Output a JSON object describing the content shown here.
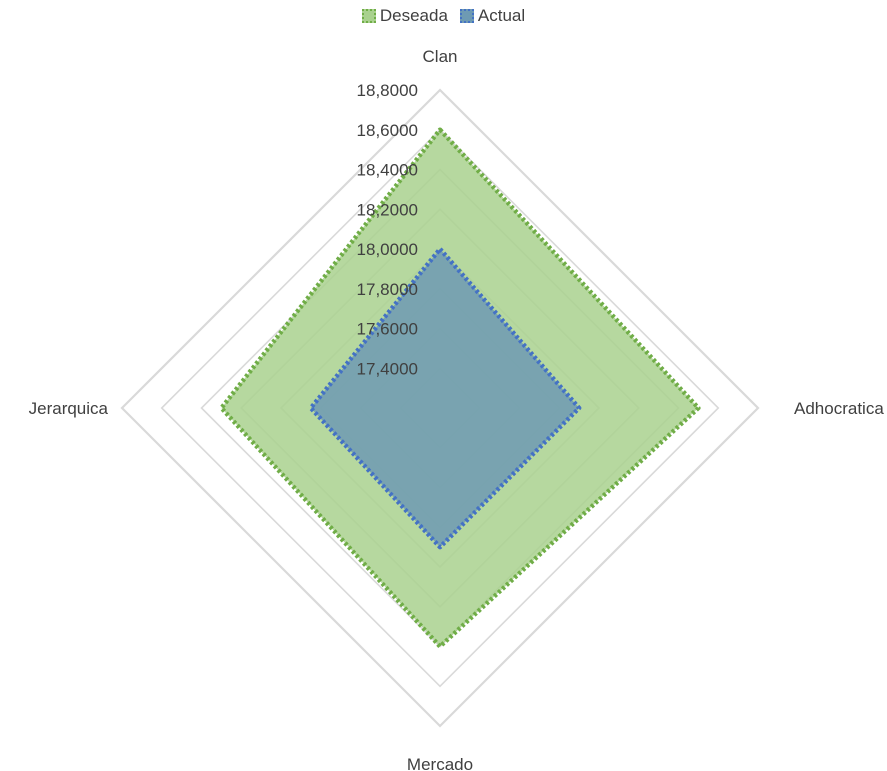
{
  "chart_data": {
    "type": "radar",
    "categories": [
      "Clan",
      "Adhocratica",
      "Mercado",
      "Jerarquica"
    ],
    "series": [
      {
        "name": "Deseada",
        "values": [
          18.6,
          18.5,
          18.4,
          18.3
        ],
        "color": "#70AD47",
        "fill": "#A9D18E"
      },
      {
        "name": "Actual",
        "values": [
          18.0,
          17.9,
          17.9,
          17.85
        ],
        "color": "#4472C4",
        "fill": "#6E9AB3"
      }
    ],
    "rlim": [
      17.2,
      18.8
    ],
    "ticks": [
      "17,4000",
      "17,6000",
      "17,8000",
      "18,0000",
      "18,2000",
      "18,4000",
      "18,6000",
      "18,8000"
    ],
    "grid_color": "#D9D9D9",
    "legend_position": "top"
  }
}
